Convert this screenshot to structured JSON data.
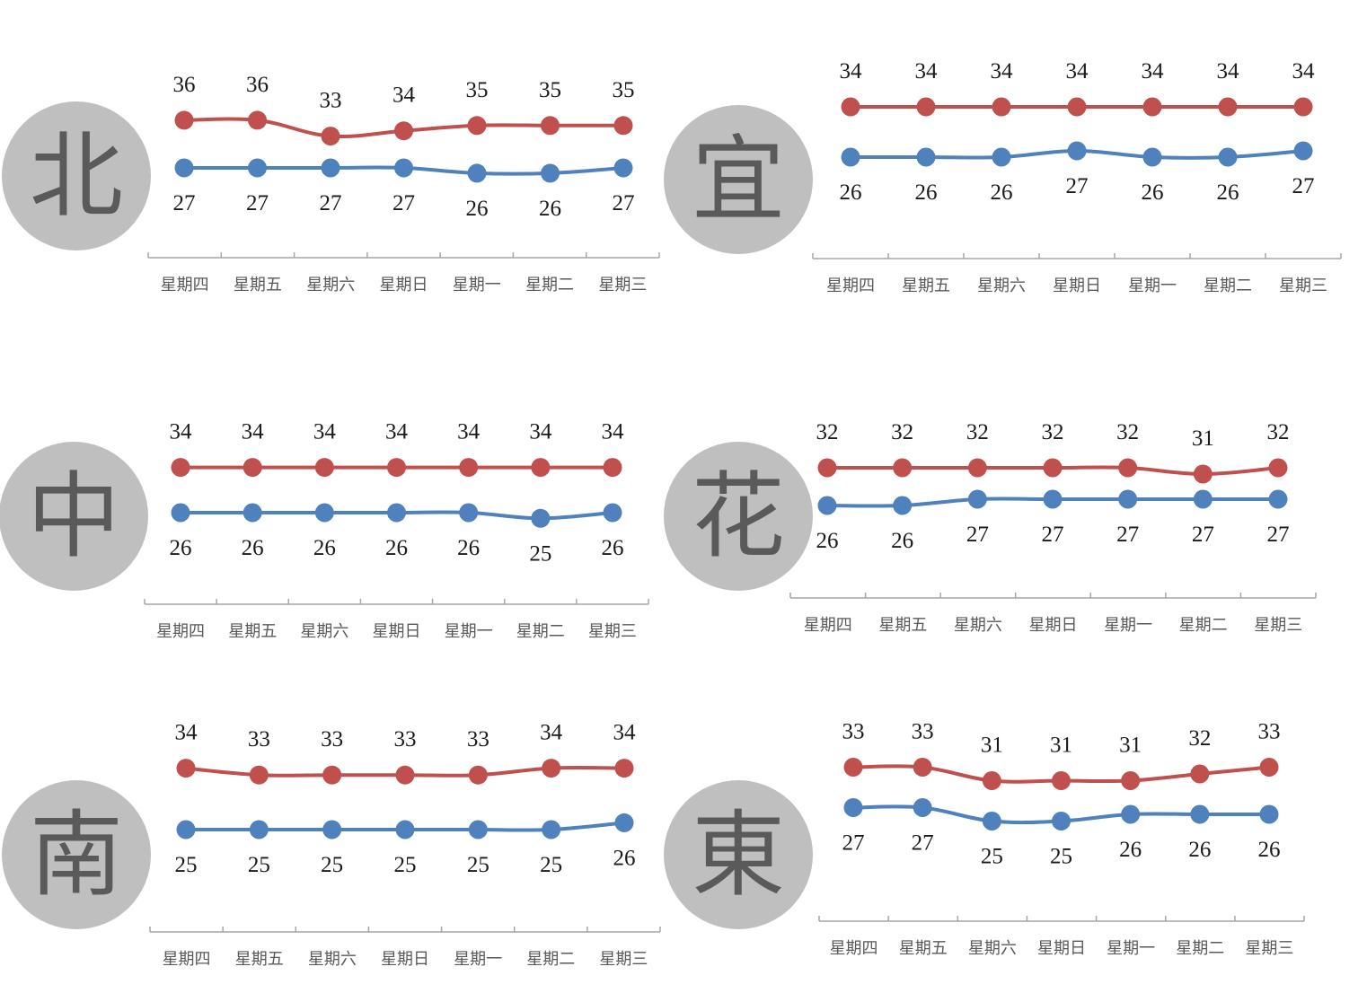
{
  "colors": {
    "high": "#c0504d",
    "low": "#4f81bd",
    "circle": "#bfbfbf",
    "city_text": "#5a5a5a",
    "axis": "#a6a6a6"
  },
  "chart_data": [
    {
      "type": "line",
      "city": "北",
      "categories": [
        "星期四",
        "星期五",
        "星期六",
        "星期日",
        "星期一",
        "星期二",
        "星期三"
      ],
      "series": [
        {
          "values": [
            36,
            36,
            33,
            34,
            35,
            35,
            35
          ]
        },
        {
          "values": [
            27,
            27,
            27,
            27,
            26,
            26,
            27
          ]
        }
      ]
    },
    {
      "type": "line",
      "city": "宜",
      "categories": [
        "星期四",
        "星期五",
        "星期六",
        "星期日",
        "星期一",
        "星期二",
        "星期三"
      ],
      "series": [
        {
          "values": [
            34,
            34,
            34,
            34,
            34,
            34,
            34
          ]
        },
        {
          "values": [
            26,
            26,
            26,
            27,
            26,
            26,
            27
          ]
        }
      ]
    },
    {
      "type": "line",
      "city": "中",
      "categories": [
        "星期四",
        "星期五",
        "星期六",
        "星期日",
        "星期一",
        "星期二",
        "星期三"
      ],
      "series": [
        {
          "values": [
            34,
            34,
            34,
            34,
            34,
            34,
            34
          ]
        },
        {
          "values": [
            26,
            26,
            26,
            26,
            26,
            25,
            26
          ]
        }
      ]
    },
    {
      "type": "line",
      "city": "花",
      "categories": [
        "星期四",
        "星期五",
        "星期六",
        "星期日",
        "星期一",
        "星期二",
        "星期三"
      ],
      "series": [
        {
          "values": [
            32,
            32,
            32,
            32,
            32,
            31,
            32
          ]
        },
        {
          "values": [
            26,
            26,
            27,
            27,
            27,
            27,
            27
          ]
        }
      ]
    },
    {
      "type": "line",
      "city": "南",
      "categories": [
        "星期四",
        "星期五",
        "星期六",
        "星期日",
        "星期一",
        "星期二",
        "星期三"
      ],
      "series": [
        {
          "values": [
            34,
            33,
            33,
            33,
            33,
            34,
            34
          ]
        },
        {
          "values": [
            25,
            25,
            25,
            25,
            25,
            25,
            26
          ]
        }
      ]
    },
    {
      "type": "line",
      "city": "東",
      "categories": [
        "星期四",
        "星期五",
        "星期六",
        "星期日",
        "星期一",
        "星期二",
        "星期三"
      ],
      "series": [
        {
          "values": [
            33,
            33,
            31,
            31,
            31,
            32,
            33
          ]
        },
        {
          "values": [
            27,
            27,
            25,
            25,
            26,
            26,
            26
          ]
        }
      ]
    }
  ]
}
